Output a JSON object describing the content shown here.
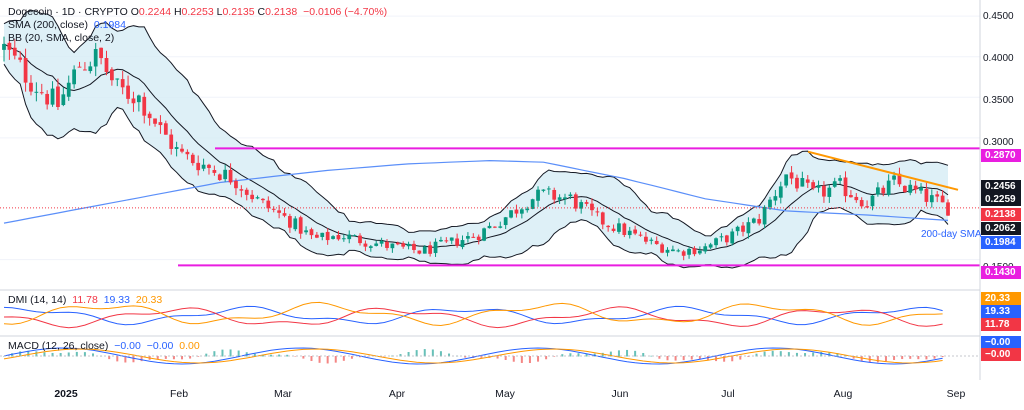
{
  "header": {
    "symbol": "Dogecoin · 1D · CRYPTO",
    "ohlc": [
      {
        "k": "O",
        "v": "0.2244"
      },
      {
        "k": "H",
        "v": "0.2253"
      },
      {
        "k": "L",
        "v": "0.2135"
      },
      {
        "k": "C",
        "v": "0.2138"
      }
    ],
    "change": "−0.0106 (−4.70%)",
    "sma_label": "SMA (200, close)",
    "sma_value": "0.1984",
    "bb_label": "BB (20, SMA, close, 2)",
    "dmi_label": "DMI (14, 14)",
    "dmi_values": [
      "11.78",
      "19.33",
      "20.33"
    ],
    "macd_label": "MACD (12, 26, close)",
    "macd_values": [
      "−0.00",
      "−0.00",
      "0.00"
    ]
  },
  "price_axis": {
    "ticks": [
      "0.4500",
      "0.4000",
      "0.3500",
      "0.3000",
      "0.1500"
    ]
  },
  "price_badges": [
    {
      "text": "0.2870",
      "color": "#e91ee0",
      "value": 0.287
    },
    {
      "text": "0.2456",
      "color": "#131722",
      "value": 0.2456
    },
    {
      "text": "0.2259",
      "color": "#131722",
      "value": 0.2259
    },
    {
      "text": "0.2138",
      "color": "#f23645",
      "value": 0.2138
    },
    {
      "text": "0.2062",
      "color": "#131722",
      "value": 0.2062
    },
    {
      "text": "0.1984",
      "color": "#2962ff",
      "value": 0.1984
    },
    {
      "text": "0.1430",
      "color": "#e91ee0",
      "value": 0.143
    }
  ],
  "dmi_badges": [
    {
      "text": "20.33",
      "color": "#ff9800"
    },
    {
      "text": "19.33",
      "color": "#2962ff"
    },
    {
      "text": "11.78",
      "color": "#f23645"
    }
  ],
  "macd_badges": [
    {
      "text": "−0.00",
      "color": "#2962ff"
    },
    {
      "text": "−0.00",
      "color": "#f23645"
    }
  ],
  "annotation": "200-day SMA",
  "x_axis": {
    "labels": [
      {
        "text": "2025",
        "bold": true
      },
      {
        "text": "Feb",
        "bold": false
      },
      {
        "text": "Mar",
        "bold": false
      },
      {
        "text": "Apr",
        "bold": false
      },
      {
        "text": "May",
        "bold": false
      },
      {
        "text": "Jun",
        "bold": false
      },
      {
        "text": "Jul",
        "bold": false
      },
      {
        "text": "Aug",
        "bold": false
      },
      {
        "text": "Sep",
        "bold": false
      }
    ]
  },
  "colors": {
    "up": "#089981",
    "down": "#f23645",
    "sma": "#5b8ff9",
    "bb": "#131722",
    "bbFill": "#d6ecf5",
    "level": "#e91ee0",
    "trend": "#ff9800",
    "dmiPlus": "#2962ff",
    "dmiMinus": "#f23645",
    "adx": "#ff9800"
  },
  "chart_data": {
    "type": "candlestick",
    "title": "Dogecoin · 1D · CRYPTO",
    "date_range": [
      "2025-01-01",
      "2025-08-31"
    ],
    "ylim": [
      0.12,
      0.46
    ],
    "x_month_labels": [
      "2025",
      "Feb",
      "Mar",
      "Apr",
      "May",
      "Jun",
      "Jul",
      "Aug",
      "Sep"
    ],
    "close_path": [
      [
        0,
        0.41
      ],
      [
        10,
        0.37
      ],
      [
        20,
        0.34
      ],
      [
        28,
        0.39
      ],
      [
        35,
        0.4
      ],
      [
        42,
        0.36
      ],
      [
        50,
        0.35
      ],
      [
        58,
        0.31
      ],
      [
        65,
        0.28
      ],
      [
        75,
        0.265
      ],
      [
        85,
        0.25
      ],
      [
        95,
        0.22
      ],
      [
        105,
        0.2
      ],
      [
        115,
        0.175
      ],
      [
        125,
        0.18
      ],
      [
        135,
        0.172
      ],
      [
        145,
        0.165
      ],
      [
        155,
        0.16
      ],
      [
        165,
        0.17
      ],
      [
        175,
        0.18
      ],
      [
        185,
        0.2
      ],
      [
        195,
        0.225
      ],
      [
        200,
        0.23
      ],
      [
        210,
        0.225
      ],
      [
        220,
        0.2
      ],
      [
        230,
        0.185
      ],
      [
        240,
        0.17
      ],
      [
        250,
        0.16
      ],
      [
        260,
        0.165
      ],
      [
        270,
        0.18
      ],
      [
        280,
        0.2
      ],
      [
        290,
        0.255
      ],
      [
        300,
        0.23
      ],
      [
        310,
        0.24
      ],
      [
        320,
        0.22
      ],
      [
        330,
        0.245
      ],
      [
        340,
        0.23
      ],
      [
        350,
        0.2138
      ]
    ],
    "levels": [
      {
        "name": "resistance",
        "value": 0.287
      },
      {
        "name": "support",
        "value": 0.143
      }
    ],
    "sma200_path": [
      [
        0,
        0.195
      ],
      [
        40,
        0.22
      ],
      [
        80,
        0.245
      ],
      [
        120,
        0.26
      ],
      [
        150,
        0.268
      ],
      [
        180,
        0.272
      ],
      [
        200,
        0.27
      ],
      [
        230,
        0.25
      ],
      [
        260,
        0.225
      ],
      [
        290,
        0.21
      ],
      [
        320,
        0.205
      ],
      [
        350,
        0.1984
      ]
    ],
    "last": {
      "open": 0.2244,
      "high": 0.2253,
      "low": 0.2135,
      "close": 0.2138,
      "change": -0.0106,
      "change_pct": -4.7
    },
    "sma200": 0.1984,
    "bb_upper": 0.2456,
    "bb_mid": 0.2259,
    "bb_lower": 0.2062,
    "dmi": {
      "minus_di": 11.78,
      "plus_di": 19.33,
      "adx": 20.33
    },
    "macd": {
      "macd": -0.0,
      "signal": -0.0,
      "hist": 0.0
    }
  }
}
